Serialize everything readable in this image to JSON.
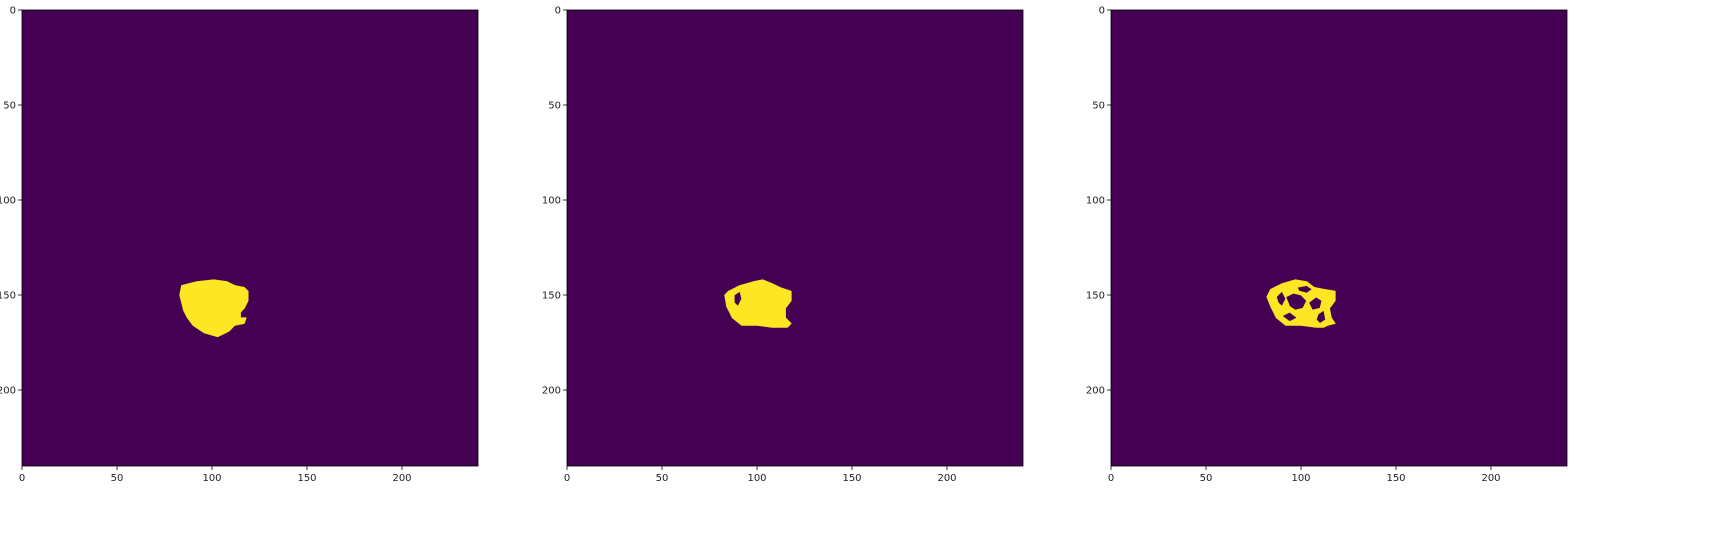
{
  "chart_data": [
    {
      "type": "heatmap",
      "title": "",
      "xlabel": "",
      "ylabel": "",
      "xlim": [
        0,
        240
      ],
      "ylim": [
        240,
        0
      ],
      "xticks": [
        "0",
        "50",
        "100",
        "150",
        "200"
      ],
      "yticks": [
        "0",
        "50",
        "100",
        "150",
        "200"
      ],
      "colormap": "viridis",
      "colors": {
        "background": "#440154",
        "mask": "#fde725"
      },
      "mask_outline": [
        [
          84,
          145
        ],
        [
          92,
          143
        ],
        [
          101,
          142
        ],
        [
          108,
          143
        ],
        [
          112,
          145
        ],
        [
          117,
          146
        ],
        [
          119,
          148
        ],
        [
          119,
          153
        ],
        [
          117,
          157
        ],
        [
          115,
          159
        ],
        [
          115,
          162
        ],
        [
          118,
          162
        ],
        [
          117,
          165
        ],
        [
          112,
          166
        ],
        [
          109,
          169
        ],
        [
          103,
          172
        ],
        [
          96,
          170
        ],
        [
          90,
          166
        ],
        [
          87,
          162
        ],
        [
          85,
          158
        ],
        [
          84,
          154
        ],
        [
          83,
          150
        ]
      ],
      "mask_holes": []
    },
    {
      "type": "heatmap",
      "title": "",
      "xlabel": "",
      "ylabel": "",
      "xlim": [
        0,
        240
      ],
      "ylim": [
        240,
        0
      ],
      "xticks": [
        "0",
        "50",
        "100",
        "150",
        "200"
      ],
      "yticks": [
        "0",
        "50",
        "100",
        "150",
        "200"
      ],
      "colormap": "viridis",
      "colors": {
        "background": "#440154",
        "mask": "#fde725"
      },
      "mask_outline": [
        [
          85,
          148
        ],
        [
          91,
          145
        ],
        [
          98,
          143
        ],
        [
          103,
          142
        ],
        [
          108,
          144
        ],
        [
          112,
          146
        ],
        [
          118,
          148
        ],
        [
          118,
          153
        ],
        [
          115,
          157
        ],
        [
          115,
          162
        ],
        [
          118,
          165
        ],
        [
          116,
          167
        ],
        [
          112,
          167
        ],
        [
          108,
          167
        ],
        [
          100,
          166
        ],
        [
          92,
          166
        ],
        [
          87,
          162
        ],
        [
          84,
          156
        ],
        [
          83,
          150
        ]
      ],
      "mask_holes": [
        [
          [
            88,
            150
          ],
          [
            91,
            148
          ],
          [
            92,
            152
          ],
          [
            90,
            156
          ],
          [
            88,
            154
          ]
        ]
      ]
    },
    {
      "type": "heatmap",
      "title": "",
      "xlabel": "",
      "ylabel": "",
      "xlim": [
        0,
        240
      ],
      "ylim": [
        240,
        0
      ],
      "xticks": [
        "0",
        "50",
        "100",
        "150",
        "200"
      ],
      "yticks": [
        "0",
        "50",
        "100",
        "150",
        "200"
      ],
      "colormap": "viridis",
      "colors": {
        "background": "#440154",
        "mask": "#fde725"
      },
      "mask_outline": [
        [
          84,
          147
        ],
        [
          90,
          144
        ],
        [
          97,
          142
        ],
        [
          103,
          143
        ],
        [
          107,
          146
        ],
        [
          112,
          147
        ],
        [
          118,
          148
        ],
        [
          118,
          153
        ],
        [
          115,
          157
        ],
        [
          116,
          162
        ],
        [
          118,
          165
        ],
        [
          114,
          166
        ],
        [
          112,
          167
        ],
        [
          108,
          167
        ],
        [
          100,
          166
        ],
        [
          92,
          166
        ],
        [
          87,
          162
        ],
        [
          84,
          156
        ],
        [
          82,
          151
        ]
      ],
      "mask_holes": [
        [
          [
            87,
            151
          ],
          [
            90,
            148
          ],
          [
            92,
            152
          ],
          [
            90,
            156
          ],
          [
            88,
            154
          ]
        ],
        [
          [
            92,
            151
          ],
          [
            96,
            149
          ],
          [
            100,
            150
          ],
          [
            103,
            153
          ],
          [
            101,
            157
          ],
          [
            97,
            158
          ],
          [
            94,
            156
          ]
        ],
        [
          [
            98,
            146
          ],
          [
            103,
            145
          ],
          [
            106,
            147
          ],
          [
            103,
            149
          ],
          [
            99,
            148
          ]
        ],
        [
          [
            104,
            154
          ],
          [
            108,
            151
          ],
          [
            111,
            153
          ],
          [
            110,
            157
          ],
          [
            106,
            158
          ]
        ],
        [
          [
            109,
            160
          ],
          [
            112,
            158
          ],
          [
            113,
            163
          ],
          [
            110,
            165
          ],
          [
            108,
            163
          ]
        ],
        [
          [
            90,
            161
          ],
          [
            94,
            159
          ],
          [
            98,
            162
          ],
          [
            94,
            164
          ]
        ]
      ]
    }
  ]
}
